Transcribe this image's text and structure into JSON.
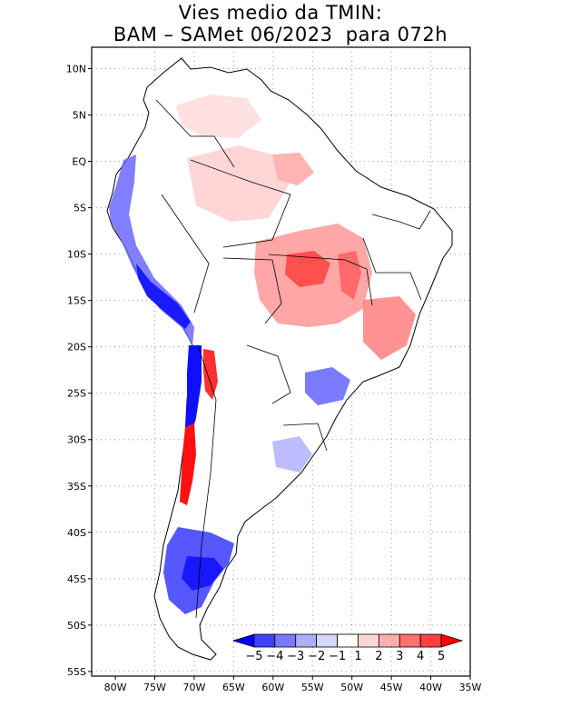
{
  "title": {
    "line1": "Vies medio da TMIN:",
    "line2": "BAM – SAMet 06/2023  para 072h"
  },
  "map": {
    "lon_range": [
      -83,
      -35
    ],
    "lat_range": [
      -55.5,
      12.3
    ],
    "region": "South America",
    "variable": "TMIN bias",
    "lon_ticks": [
      "80W",
      "75W",
      "70W",
      "65W",
      "60W",
      "55W",
      "50W",
      "45W",
      "40W",
      "35W"
    ],
    "lon_tick_values": [
      -80,
      -75,
      -70,
      -65,
      -60,
      -55,
      -50,
      -45,
      -40,
      -35
    ],
    "lat_ticks": [
      "10N",
      "5N",
      "EQ",
      "5S",
      "10S",
      "15S",
      "20S",
      "25S",
      "30S",
      "35S",
      "40S",
      "45S",
      "50S",
      "55S"
    ],
    "lat_tick_values": [
      10,
      5,
      0,
      -5,
      -10,
      -15,
      -20,
      -25,
      -30,
      -35,
      -40,
      -45,
      -50,
      -55
    ]
  },
  "colorbar": {
    "labels": [
      "−5",
      "−4",
      "−3",
      "−2",
      "−1",
      "1",
      "2",
      "3",
      "4",
      "5"
    ],
    "colors": [
      "#0000ff",
      "#4040ff",
      "#7a7aff",
      "#aeaeff",
      "#d6d6ff",
      "#ffffff",
      "#ffd6d6",
      "#ffaeae",
      "#ff7070",
      "#ff4040",
      "#ff0000"
    ]
  },
  "colors": {
    "land": "#ffffff",
    "border": "#000000",
    "grid": "#9a9a9a",
    "strong_negative": "#0000ff",
    "strong_positive": "#ff0000"
  }
}
